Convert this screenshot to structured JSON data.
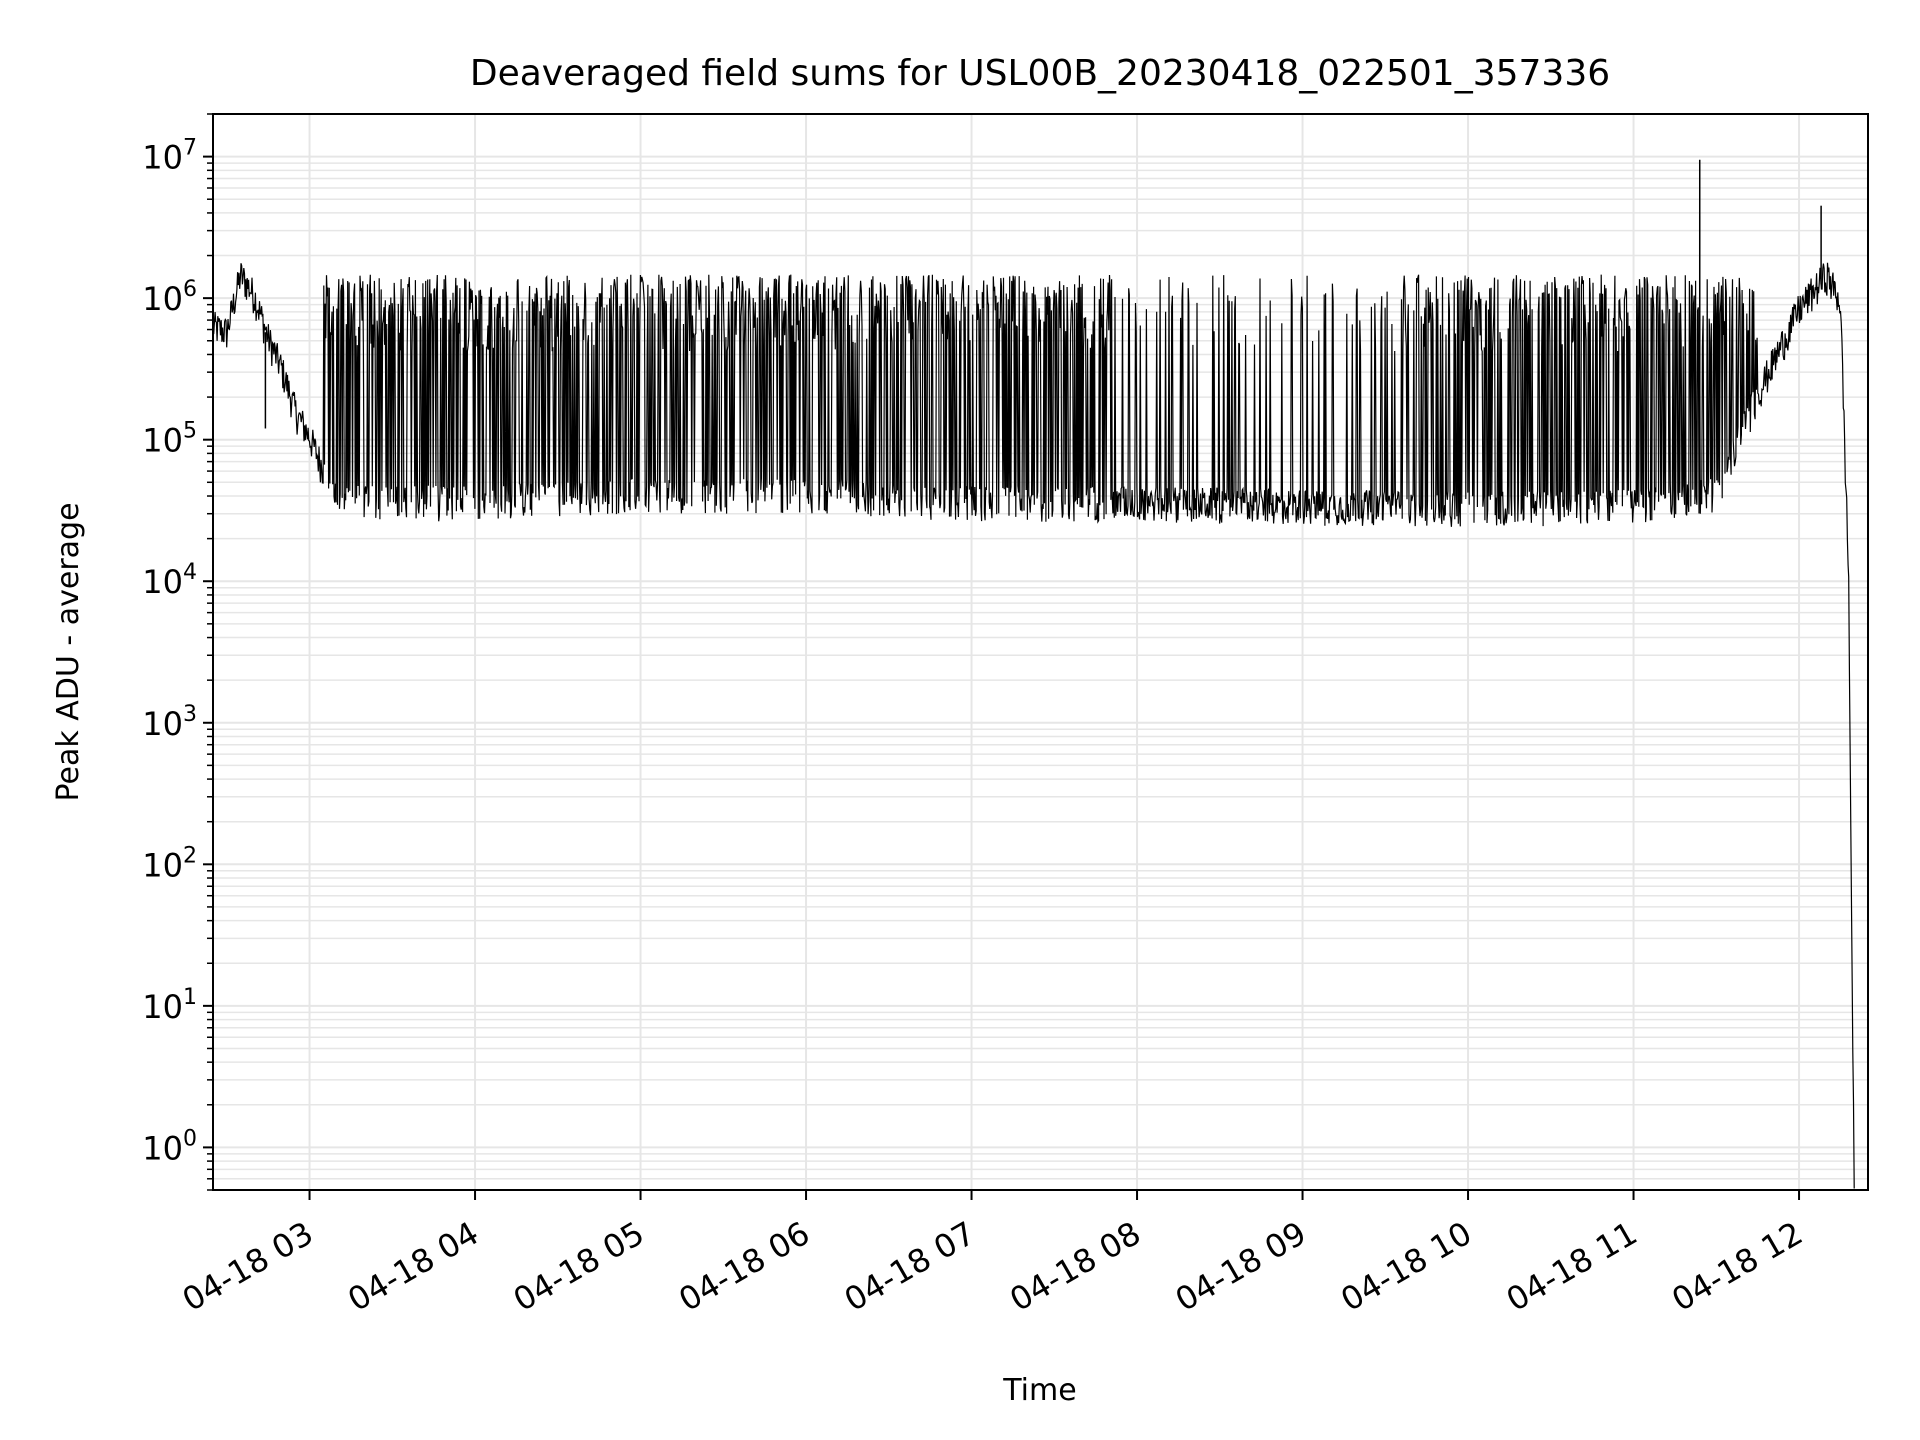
{
  "chart_data": {
    "type": "line",
    "title": "Deaveraged field sums for USL00B_20230418_022501_357336",
    "xlabel": "Time",
    "ylabel": "Peak ADU - average",
    "yscale": "log",
    "ylim": [
      0.5,
      20000000
    ],
    "xlim": [
      "2023-04-18 02:25",
      "2023-04-18 12:25"
    ],
    "grid": true,
    "line_color": "#000000",
    "x_tick_values": [
      "2023-04-18 03:00",
      "2023-04-18 04:00",
      "2023-04-18 05:00",
      "2023-04-18 06:00",
      "2023-04-18 07:00",
      "2023-04-18 08:00",
      "2023-04-18 09:00",
      "2023-04-18 10:00",
      "2023-04-18 11:00",
      "2023-04-18 12:00"
    ],
    "x_tick_labels": [
      "04-18 03",
      "04-18 04",
      "04-18 05",
      "04-18 06",
      "04-18 07",
      "04-18 08",
      "04-18 09",
      "04-18 10",
      "04-18 11",
      "04-18 12"
    ],
    "y_ticks": [
      {
        "value": 1,
        "base": "10",
        "exp": "0"
      },
      {
        "value": 10,
        "base": "10",
        "exp": "1"
      },
      {
        "value": 100,
        "base": "10",
        "exp": "2"
      },
      {
        "value": 1000,
        "base": "10",
        "exp": "3"
      },
      {
        "value": 10000,
        "base": "10",
        "exp": "4"
      },
      {
        "value": 100000,
        "base": "10",
        "exp": "5"
      },
      {
        "value": 1000000,
        "base": "10",
        "exp": "6"
      },
      {
        "value": 10000000,
        "base": "10",
        "exp": "7"
      }
    ],
    "series": [
      {
        "points": [
          [
            "2023-04-18 02:25",
            600000
          ],
          [
            "2023-04-18 02:30",
            550000
          ],
          [
            "2023-04-18 02:35",
            1400000
          ],
          [
            "2023-04-18 02:40",
            1000000
          ],
          [
            "2023-04-18 02:45",
            500000
          ],
          [
            "2023-04-18 02:50",
            300000
          ],
          [
            "2023-04-18 02:55",
            150000
          ],
          [
            "2023-04-18 03:00",
            100000
          ],
          [
            "2023-04-18 03:10",
            35000
          ],
          [
            "2023-04-18 03:30",
            35000
          ],
          [
            "2023-04-18 04:00",
            35000
          ],
          [
            "2023-04-18 05:00",
            40000
          ],
          [
            "2023-04-18 06:00",
            40000
          ],
          [
            "2023-04-18 07:00",
            35000
          ],
          [
            "2023-04-18 08:00",
            35000
          ],
          [
            "2023-04-18 09:00",
            33000
          ],
          [
            "2023-04-18 10:00",
            32000
          ],
          [
            "2023-04-18 11:00",
            33000
          ],
          [
            "2023-04-18 11:30",
            40000
          ],
          [
            "2023-04-18 11:45",
            200000
          ],
          [
            "2023-04-18 12:00",
            800000
          ],
          [
            "2023-04-18 12:10",
            1400000
          ],
          [
            "2023-04-18 12:15",
            900000
          ],
          [
            "2023-04-18 12:18",
            10000
          ],
          [
            "2023-04-18 12:19",
            50
          ],
          [
            "2023-04-18 12:20",
            0.5
          ]
        ],
        "spikes_to": 1400000,
        "spike_start": "2023-04-18 03:05",
        "spike_end": "2023-04-18 11:45",
        "notable_peaks": [
          [
            "2023-04-18 11:24",
            9500000
          ],
          [
            "2023-04-18 11:24",
            3800000
          ],
          [
            "2023-04-18 12:08",
            4500000
          ],
          [
            "2023-04-18 02:44",
            120000
          ]
        ]
      }
    ]
  }
}
